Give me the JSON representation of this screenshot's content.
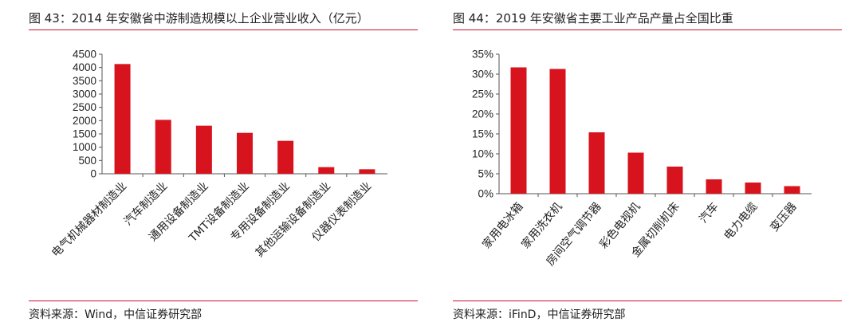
{
  "colors": {
    "bar": "#d7141e",
    "accent": "#c8102e",
    "axis": "#555555"
  },
  "charts": [
    {
      "title": "图 43：2014 年安徽省中游制造规模以上企业营业收入（亿元）",
      "source": "资料来源：Wind，中信证券研究部",
      "chart_data": {
        "type": "bar",
        "categories": [
          "电气机械器材制造业",
          "汽车制造业",
          "通用设备制造业",
          "TMT设备制造业",
          "专用设备制造业",
          "其他运输设备制造业",
          "仪器仪表制造业"
        ],
        "values": [
          4130,
          2030,
          1810,
          1540,
          1240,
          250,
          170
        ],
        "yticks": [
          "0",
          "500",
          "1000",
          "1500",
          "2000",
          "2500",
          "3000",
          "3500",
          "4000",
          "4500"
        ],
        "ylim": [
          0,
          4500
        ],
        "xlabel": "",
        "ylabel": ""
      }
    },
    {
      "title": "图 44：2019 年安徽省主要工业产品产量占全国比重",
      "source": "资料来源：iFinD，中信证券研究部",
      "chart_data": {
        "type": "bar",
        "categories": [
          "家用电冰箱",
          "家用洗衣机",
          "房间空气调节器",
          "彩色电视机",
          "金属切削机床",
          "汽车",
          "电力电缆",
          "变压器"
        ],
        "values": [
          31.7,
          31.3,
          15.4,
          10.3,
          6.8,
          3.6,
          2.8,
          1.9
        ],
        "yticks": [
          "0%",
          "5%",
          "10%",
          "15%",
          "20%",
          "25%",
          "30%",
          "35%"
        ],
        "ylim": [
          0,
          35
        ],
        "xlabel": "",
        "ylabel": ""
      }
    }
  ]
}
